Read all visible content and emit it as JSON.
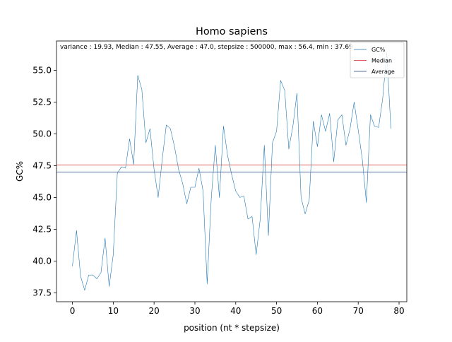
{
  "chart_data": {
    "type": "line",
    "title": "Homo sapiens",
    "xlabel": "position (nt * stepsize)",
    "ylabel": "GC%",
    "annotation": "variance : 19.93, Median : 47.55, Average : 47.0, stepsize : 500000, max : 56.4, min : 37.69",
    "xlim": [
      -3.9,
      81.9
    ],
    "ylim": [
      36.8,
      57.3
    ],
    "xticks": [
      0,
      10,
      20,
      30,
      40,
      50,
      60,
      70,
      80
    ],
    "yticks": [
      37.5,
      40.0,
      42.5,
      45.0,
      47.5,
      50.0,
      52.5,
      55.0
    ],
    "legend_position": "top-right",
    "grid": false,
    "series": [
      {
        "name": "GC%",
        "color": "#1f77b4",
        "x": [
          0,
          1,
          2,
          3,
          4,
          5,
          6,
          7,
          8,
          9,
          10,
          11,
          12,
          13,
          14,
          15,
          16,
          17,
          18,
          19,
          20,
          21,
          22,
          23,
          24,
          25,
          26,
          27,
          28,
          29,
          30,
          31,
          32,
          33,
          34,
          35,
          36,
          37,
          38,
          39,
          40,
          41,
          42,
          43,
          44,
          45,
          46,
          47,
          48,
          49,
          50,
          51,
          52,
          53,
          54,
          55,
          56,
          57,
          58,
          59,
          60,
          61,
          62,
          63,
          64,
          65,
          66,
          67,
          68,
          69,
          70,
          71,
          72,
          73,
          74,
          75,
          76,
          77,
          78
        ],
        "y": [
          39.6,
          42.4,
          38.8,
          37.7,
          38.9,
          38.9,
          38.6,
          39.1,
          41.8,
          38.0,
          40.5,
          46.9,
          47.4,
          47.3,
          49.6,
          47.6,
          54.6,
          53.5,
          49.3,
          50.4,
          47.2,
          45.0,
          48.0,
          50.7,
          50.4,
          49.0,
          47.2,
          46.1,
          44.5,
          45.8,
          45.8,
          47.3,
          45.5,
          38.2,
          44.9,
          49.1,
          45.0,
          50.6,
          48.3,
          46.8,
          45.5,
          45.0,
          45.1,
          43.3,
          43.5,
          40.5,
          43.3,
          49.1,
          42.0,
          49.3,
          50.2,
          54.2,
          53.4,
          48.8,
          50.6,
          53.2,
          45.0,
          43.7,
          44.8,
          51.0,
          49.0,
          51.5,
          50.2,
          51.6,
          47.8,
          51.1,
          51.5,
          49.1,
          50.4,
          52.5,
          50.3,
          48.0,
          44.6,
          51.5,
          50.6,
          50.5,
          52.8,
          56.4,
          50.4
        ]
      },
      {
        "name": "Median",
        "color": "#d62728",
        "value": 47.55
      },
      {
        "name": "Average",
        "color": "#1f3b7a",
        "value": 47.0
      }
    ]
  }
}
